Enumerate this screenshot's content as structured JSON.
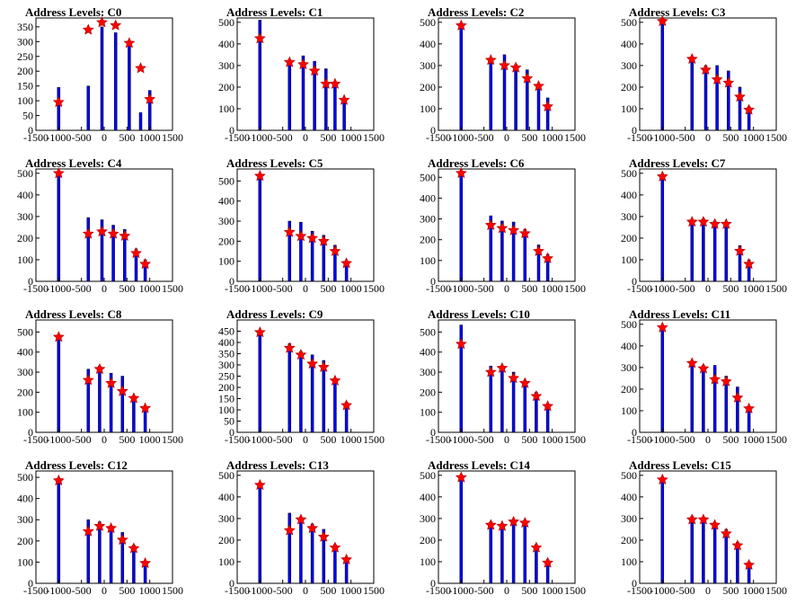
{
  "colors": {
    "bars": "#0000ff",
    "bar_outline": "#000000",
    "markers": "#ff0000",
    "frame": "#000000",
    "background": "#ffffff"
  },
  "chart_data": [
    {
      "type": "bar",
      "title": "Address Levels: C0",
      "xlim": [
        -1500,
        1500
      ],
      "ylim": [
        0,
        380
      ],
      "yticks": [
        0,
        50,
        100,
        150,
        200,
        250,
        300,
        350
      ],
      "xticks": [
        -1500,
        -1000,
        -500,
        0,
        500,
        1000,
        1500
      ],
      "x": [
        -1000,
        -350,
        -50,
        250,
        550,
        800,
        1000
      ],
      "values": [
        145,
        150,
        350,
        330,
        290,
        60,
        135
      ],
      "markers": [
        95,
        340,
        365,
        355,
        295,
        210,
        105
      ]
    },
    {
      "type": "bar",
      "title": "Address Levels: C1",
      "xlim": [
        -1500,
        1500
      ],
      "ylim": [
        0,
        520
      ],
      "yticks": [
        0,
        100,
        200,
        300,
        400,
        500
      ],
      "xticks": [
        -1500,
        -1000,
        -500,
        0,
        500,
        1000,
        1500
      ],
      "x": [
        -1000,
        -350,
        -50,
        200,
        450,
        650,
        850
      ],
      "values": [
        510,
        305,
        345,
        320,
        285,
        225,
        130
      ],
      "markers": [
        425,
        315,
        305,
        275,
        215,
        215,
        140
      ]
    },
    {
      "type": "bar",
      "title": "Address Levels: C2",
      "xlim": [
        -1500,
        1500
      ],
      "ylim": [
        0,
        520
      ],
      "yticks": [
        0,
        100,
        200,
        300,
        400,
        500
      ],
      "xticks": [
        -1500,
        -1000,
        -500,
        0,
        500,
        1000,
        1500
      ],
      "x": [
        -1000,
        -350,
        -50,
        200,
        450,
        700,
        900
      ],
      "values": [
        490,
        310,
        350,
        305,
        280,
        210,
        150
      ],
      "markers": [
        485,
        325,
        300,
        290,
        240,
        205,
        110
      ]
    },
    {
      "type": "bar",
      "title": "Address Levels: C3",
      "xlim": [
        -1500,
        1500
      ],
      "ylim": [
        0,
        520
      ],
      "yticks": [
        0,
        100,
        200,
        300,
        400,
        500
      ],
      "xticks": [
        -1500,
        -1000,
        -500,
        0,
        500,
        1000,
        1500
      ],
      "x": [
        -1000,
        -350,
        -50,
        200,
        450,
        700,
        900
      ],
      "values": [
        520,
        330,
        300,
        300,
        275,
        200,
        110
      ],
      "markers": [
        505,
        330,
        280,
        235,
        220,
        155,
        95
      ]
    },
    {
      "type": "bar",
      "title": "Address Levels: C4",
      "xlim": [
        -1500,
        1500
      ],
      "ylim": [
        0,
        520
      ],
      "yticks": [
        0,
        100,
        200,
        300,
        400,
        500
      ],
      "xticks": [
        -1500,
        -1000,
        -500,
        0,
        500,
        1000,
        1500
      ],
      "x": [
        -1000,
        -350,
        -50,
        200,
        450,
        700,
        900
      ],
      "values": [
        505,
        295,
        285,
        260,
        240,
        150,
        100
      ],
      "markers": [
        500,
        220,
        230,
        220,
        210,
        130,
        80
      ]
    },
    {
      "type": "bar",
      "title": "Address Levels: C5",
      "xlim": [
        -1500,
        1500
      ],
      "ylim": [
        0,
        560
      ],
      "yticks": [
        0,
        100,
        200,
        300,
        400,
        500
      ],
      "xticks": [
        -1500,
        -1000,
        -500,
        0,
        500,
        1000,
        1500
      ],
      "x": [
        -1000,
        -350,
        -100,
        150,
        400,
        650,
        900
      ],
      "values": [
        535,
        300,
        295,
        250,
        230,
        180,
        100
      ],
      "markers": [
        525,
        245,
        225,
        215,
        200,
        150,
        90
      ]
    },
    {
      "type": "bar",
      "title": "Address Levels: C6",
      "xlim": [
        -1500,
        1500
      ],
      "ylim": [
        0,
        540
      ],
      "yticks": [
        0,
        100,
        200,
        300,
        400,
        500
      ],
      "xticks": [
        -1500,
        -1000,
        -500,
        0,
        500,
        1000,
        1500
      ],
      "x": [
        -1000,
        -350,
        -100,
        150,
        400,
        700,
        900
      ],
      "values": [
        525,
        315,
        290,
        285,
        250,
        175,
        130
      ],
      "markers": [
        520,
        270,
        255,
        245,
        230,
        145,
        110
      ]
    },
    {
      "type": "bar",
      "title": "Address Levels: C7",
      "xlim": [
        -1500,
        1500
      ],
      "ylim": [
        0,
        520
      ],
      "yticks": [
        0,
        100,
        200,
        300,
        400,
        500
      ],
      "xticks": [
        -1500,
        -1000,
        -500,
        0,
        500,
        1000,
        1500
      ],
      "x": [
        -1000,
        -350,
        -100,
        150,
        400,
        700,
        900
      ],
      "values": [
        490,
        285,
        290,
        280,
        275,
        165,
        100
      ],
      "markers": [
        485,
        275,
        275,
        265,
        265,
        140,
        80
      ]
    },
    {
      "type": "bar",
      "title": "Address Levels: C8",
      "xlim": [
        -1500,
        1500
      ],
      "ylim": [
        0,
        560
      ],
      "yticks": [
        0,
        100,
        200,
        300,
        400,
        500
      ],
      "xticks": [
        -1500,
        -1000,
        -500,
        0,
        500,
        1000,
        1500
      ],
      "x": [
        -1000,
        -350,
        -100,
        150,
        400,
        650,
        900
      ],
      "values": [
        480,
        315,
        330,
        295,
        280,
        175,
        130
      ],
      "markers": [
        475,
        260,
        315,
        245,
        205,
        170,
        120
      ]
    },
    {
      "type": "bar",
      "title": "Address Levels: C9",
      "xlim": [
        -1500,
        1500
      ],
      "ylim": [
        0,
        500
      ],
      "yticks": [
        0,
        50,
        100,
        150,
        200,
        250,
        300,
        350,
        400,
        450
      ],
      "xticks": [
        -1500,
        -1000,
        -500,
        0,
        500,
        1000,
        1500
      ],
      "x": [
        -1000,
        -350,
        -100,
        150,
        400,
        650,
        900
      ],
      "values": [
        450,
        395,
        360,
        345,
        320,
        240,
        135
      ],
      "markers": [
        445,
        375,
        345,
        305,
        290,
        230,
        120
      ]
    },
    {
      "type": "bar",
      "title": "Address Levels: C10",
      "xlim": [
        -1500,
        1500
      ],
      "ylim": [
        0,
        560
      ],
      "yticks": [
        0,
        100,
        200,
        300,
        400,
        500
      ],
      "xticks": [
        -1500,
        -1000,
        -500,
        0,
        500,
        1000,
        1500
      ],
      "x": [
        -1000,
        -350,
        -100,
        150,
        400,
        650,
        900
      ],
      "values": [
        535,
        330,
        320,
        300,
        260,
        200,
        140
      ],
      "markers": [
        440,
        300,
        320,
        270,
        245,
        180,
        130
      ]
    },
    {
      "type": "bar",
      "title": "Address Levels: C11",
      "xlim": [
        -1500,
        1500
      ],
      "ylim": [
        0,
        520
      ],
      "yticks": [
        0,
        100,
        200,
        300,
        400,
        500
      ],
      "xticks": [
        -1500,
        -1000,
        -500,
        0,
        500,
        1000,
        1500
      ],
      "x": [
        -1000,
        -350,
        -100,
        150,
        400,
        650,
        900
      ],
      "values": [
        490,
        320,
        310,
        310,
        260,
        210,
        120
      ],
      "markers": [
        485,
        320,
        295,
        245,
        235,
        160,
        110
      ]
    },
    {
      "type": "bar",
      "title": "Address Levels: C12",
      "xlim": [
        -1500,
        1500
      ],
      "ylim": [
        0,
        530
      ],
      "yticks": [
        0,
        100,
        200,
        300,
        400,
        500
      ],
      "xticks": [
        -1500,
        -1000,
        -500,
        0,
        500,
        1000,
        1500
      ],
      "x": [
        -1000,
        -350,
        -100,
        150,
        400,
        650,
        900
      ],
      "values": [
        490,
        300,
        290,
        270,
        240,
        180,
        100
      ],
      "markers": [
        485,
        245,
        270,
        260,
        205,
        165,
        95
      ]
    },
    {
      "type": "bar",
      "title": "Address Levels: C13",
      "xlim": [
        -1500,
        1500
      ],
      "ylim": [
        0,
        520
      ],
      "yticks": [
        0,
        100,
        200,
        300,
        400,
        500
      ],
      "xticks": [
        -1500,
        -1000,
        -500,
        0,
        500,
        1000,
        1500
      ],
      "x": [
        -1000,
        -350,
        -100,
        150,
        400,
        650,
        900
      ],
      "values": [
        460,
        325,
        300,
        275,
        250,
        180,
        120
      ],
      "markers": [
        455,
        245,
        295,
        255,
        215,
        165,
        110
      ]
    },
    {
      "type": "bar",
      "title": "Address Levels: C14",
      "xlim": [
        -1500,
        1500
      ],
      "ylim": [
        0,
        520
      ],
      "yticks": [
        0,
        100,
        200,
        300,
        400,
        500
      ],
      "xticks": [
        -1500,
        -1000,
        -500,
        0,
        500,
        1000,
        1500
      ],
      "x": [
        -1000,
        -350,
        -100,
        150,
        400,
        650,
        900
      ],
      "values": [
        500,
        285,
        275,
        295,
        285,
        180,
        110
      ],
      "markers": [
        490,
        270,
        265,
        285,
        280,
        165,
        95
      ]
    },
    {
      "type": "bar",
      "title": "Address Levels: C15",
      "xlim": [
        -1500,
        1500
      ],
      "ylim": [
        0,
        520
      ],
      "yticks": [
        0,
        100,
        200,
        300,
        400,
        500
      ],
      "xticks": [
        -1500,
        -1000,
        -500,
        0,
        500,
        1000,
        1500
      ],
      "x": [
        -1000,
        -350,
        -100,
        150,
        400,
        650,
        900
      ],
      "values": [
        490,
        310,
        305,
        280,
        250,
        190,
        100
      ],
      "markers": [
        480,
        295,
        295,
        270,
        230,
        175,
        85
      ]
    }
  ]
}
